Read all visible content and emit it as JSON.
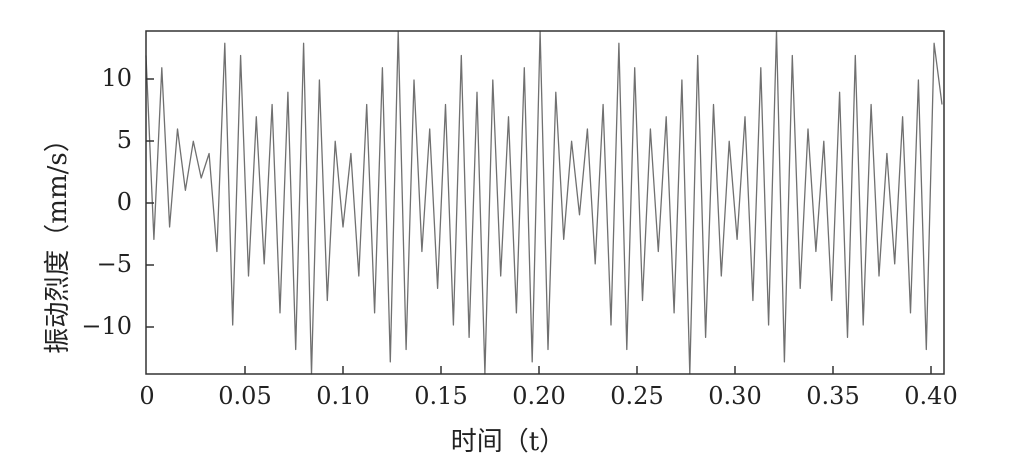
{
  "chart_data": {
    "type": "line",
    "title": "",
    "xlabel": "时间（t）",
    "ylabel": "振动烈度（mm/s）",
    "xlim": [
      0,
      0.405
    ],
    "ylim": [
      -14,
      14
    ],
    "x_ticks": [
      "0",
      "0.05",
      "0.10",
      "0.15",
      "0.20",
      "0.25",
      "0.30",
      "0.35",
      "0.40"
    ],
    "y_ticks": [
      "10",
      "5",
      "0",
      "−5",
      "−10"
    ],
    "grid": false,
    "line_color": "#707070",
    "series": [
      {
        "name": "",
        "x": [
          0.0,
          0.004,
          0.008,
          0.012,
          0.016,
          0.02,
          0.024,
          0.028,
          0.032,
          0.036,
          0.04,
          0.044,
          0.048,
          0.052,
          0.056,
          0.06,
          0.064,
          0.068,
          0.072,
          0.076,
          0.08,
          0.084,
          0.088,
          0.092,
          0.096,
          0.1,
          0.104,
          0.108,
          0.112,
          0.116,
          0.12,
          0.124,
          0.128,
          0.132,
          0.136,
          0.14,
          0.144,
          0.148,
          0.152,
          0.156,
          0.16,
          0.164,
          0.168,
          0.172,
          0.176,
          0.18,
          0.184,
          0.188,
          0.192,
          0.196,
          0.2,
          0.204,
          0.208,
          0.212,
          0.216,
          0.22,
          0.224,
          0.228,
          0.232,
          0.236,
          0.24,
          0.244,
          0.248,
          0.252,
          0.256,
          0.26,
          0.264,
          0.268,
          0.272,
          0.276,
          0.28,
          0.284,
          0.288,
          0.292,
          0.296,
          0.3,
          0.304,
          0.308,
          0.312,
          0.316,
          0.32,
          0.324,
          0.328,
          0.332,
          0.336,
          0.34,
          0.344,
          0.348,
          0.352,
          0.356,
          0.36,
          0.364,
          0.368,
          0.372,
          0.376,
          0.38,
          0.384,
          0.388,
          0.392,
          0.396,
          0.4,
          0.404
        ],
        "y": [
          12,
          -3,
          11,
          -2,
          6,
          1,
          5,
          2,
          4,
          -4,
          13,
          -10,
          12,
          -6,
          7,
          -5,
          8,
          -9,
          9,
          -12,
          13,
          -14,
          10,
          -8,
          5,
          -2,
          4,
          -6,
          8,
          -9,
          11,
          -13,
          14,
          -12,
          10,
          -4,
          6,
          -7,
          8,
          -10,
          12,
          -11,
          9,
          -14,
          10,
          -6,
          7,
          -9,
          11,
          -13,
          14,
          -12,
          9,
          -3,
          5,
          -1,
          6,
          -5,
          8,
          -10,
          13,
          -12,
          11,
          -8,
          6,
          -4,
          7,
          -9,
          10,
          -14,
          12,
          -11,
          8,
          -6,
          5,
          -3,
          7,
          -8,
          11,
          -10,
          14,
          -13,
          12,
          -7,
          6,
          -4,
          5,
          -8,
          9,
          -11,
          12,
          -10,
          8,
          -6,
          4,
          -5,
          7,
          -9,
          10,
          -12,
          13,
          8
        ]
      }
    ]
  }
}
